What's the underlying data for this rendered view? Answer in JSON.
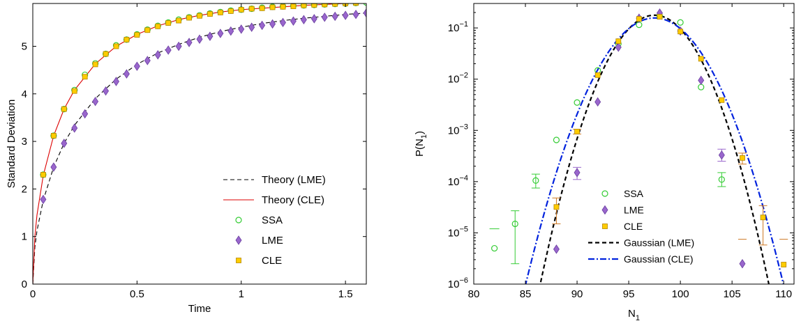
{
  "chart_data": [
    {
      "type": "line",
      "title": "",
      "xlabel": "Time",
      "ylabel": "Standard Deviation",
      "xlim": [
        0,
        1.6
      ],
      "ylim": [
        0,
        5.9
      ],
      "x_ticks": [
        0,
        0.5,
        1,
        1.5
      ],
      "x_tick_labels": [
        "0",
        "0.5",
        "1",
        "1.5"
      ],
      "y_ticks": [
        0,
        1,
        2,
        3,
        4,
        5
      ],
      "y_tick_labels": [
        "0",
        "1",
        "2",
        "3",
        "4",
        "5"
      ],
      "legend_position": "bottom-right",
      "grid": false,
      "series": [
        {
          "name": "Theory (LME)",
          "kind": "line",
          "style": "dashed",
          "color": "#000000",
          "x": [
            0,
            0.01,
            0.02,
            0.05,
            0.1,
            0.15,
            0.2,
            0.3,
            0.4,
            0.5,
            0.6,
            0.7,
            0.8,
            0.9,
            1.0,
            1.1,
            1.2,
            1.3,
            1.4,
            1.5,
            1.6
          ],
          "y": [
            0,
            0.78,
            1.12,
            1.76,
            2.46,
            2.96,
            3.34,
            3.9,
            4.31,
            4.62,
            4.86,
            5.04,
            5.19,
            5.31,
            5.4,
            5.48,
            5.54,
            5.59,
            5.63,
            5.67,
            5.7
          ]
        },
        {
          "name": "Theory (CLE)",
          "kind": "line",
          "style": "solid",
          "color": "#dd0000",
          "x": [
            0,
            0.01,
            0.02,
            0.05,
            0.1,
            0.15,
            0.2,
            0.3,
            0.4,
            0.5,
            0.6,
            0.7,
            0.8,
            0.9,
            1.0,
            1.1,
            1.2,
            1.3,
            1.4,
            1.5,
            1.6
          ],
          "y": [
            0,
            1.0,
            1.45,
            2.28,
            3.12,
            3.68,
            4.08,
            4.63,
            5.0,
            5.25,
            5.43,
            5.56,
            5.65,
            5.72,
            5.77,
            5.8,
            5.83,
            5.86,
            5.88,
            5.9,
            5.92
          ]
        },
        {
          "name": "SSA",
          "kind": "marker",
          "marker": "circle",
          "color": "#33cc33",
          "x": [
            0.05,
            0.1,
            0.15,
            0.2,
            0.25,
            0.3,
            0.35,
            0.4,
            0.45,
            0.5,
            0.55,
            0.6,
            0.65,
            0.7,
            0.75,
            0.8,
            0.85,
            0.9,
            0.95,
            1.0,
            1.05,
            1.1,
            1.15,
            1.2,
            1.25,
            1.3,
            1.35,
            1.4,
            1.45,
            1.5,
            1.55,
            1.6
          ],
          "y": [
            2.3,
            3.12,
            3.68,
            4.08,
            4.4,
            4.64,
            4.84,
            5.02,
            5.14,
            5.25,
            5.35,
            5.43,
            5.5,
            5.56,
            5.61,
            5.65,
            5.69,
            5.72,
            5.75,
            5.77,
            5.79,
            5.81,
            5.83,
            5.84,
            5.85,
            5.86,
            5.87,
            5.88,
            5.89,
            5.9,
            5.91,
            5.92
          ]
        },
        {
          "name": "LME",
          "kind": "marker",
          "marker": "diamond",
          "color": "#9966cc",
          "x": [
            0.05,
            0.1,
            0.15,
            0.2,
            0.25,
            0.3,
            0.35,
            0.4,
            0.45,
            0.5,
            0.55,
            0.6,
            0.65,
            0.7,
            0.75,
            0.8,
            0.85,
            0.9,
            0.95,
            1.0,
            1.05,
            1.1,
            1.15,
            1.2,
            1.25,
            1.3,
            1.35,
            1.4,
            1.45,
            1.5,
            1.55,
            1.6
          ],
          "y": [
            1.78,
            2.46,
            2.96,
            3.28,
            3.58,
            3.84,
            4.06,
            4.26,
            4.42,
            4.58,
            4.7,
            4.82,
            4.92,
            5.0,
            5.08,
            5.15,
            5.21,
            5.27,
            5.32,
            5.36,
            5.4,
            5.44,
            5.47,
            5.5,
            5.53,
            5.56,
            5.58,
            5.61,
            5.63,
            5.65,
            5.67,
            5.7
          ]
        },
        {
          "name": "CLE",
          "kind": "marker",
          "marker": "square",
          "color": "#ffcc00",
          "x": [
            0.05,
            0.1,
            0.15,
            0.2,
            0.25,
            0.3,
            0.35,
            0.4,
            0.45,
            0.5,
            0.55,
            0.6,
            0.65,
            0.7,
            0.75,
            0.8,
            0.85,
            0.9,
            0.95,
            1.0,
            1.05,
            1.1,
            1.15,
            1.2,
            1.25,
            1.3,
            1.35,
            1.4,
            1.45,
            1.5,
            1.55
          ],
          "y": [
            2.3,
            3.12,
            3.68,
            4.06,
            4.36,
            4.62,
            4.84,
            5.0,
            5.14,
            5.24,
            5.34,
            5.42,
            5.49,
            5.54,
            5.6,
            5.64,
            5.68,
            5.71,
            5.74,
            5.77,
            5.79,
            5.8,
            5.82,
            5.83,
            5.84,
            5.86,
            5.87,
            5.88,
            5.89,
            5.9,
            5.91
          ]
        }
      ]
    },
    {
      "type": "scatter",
      "title": "",
      "xlabel": "N",
      "xlabel_sub": "1",
      "ylabel": "P(N",
      "ylabel_sub": "1",
      "ylabel_close": ")",
      "y_scale": "log",
      "xlim": [
        80,
        111
      ],
      "ylim": [
        1e-06,
        0.3
      ],
      "x_ticks": [
        80,
        85,
        90,
        95,
        100,
        105,
        110
      ],
      "x_tick_labels": [
        "80",
        "85",
        "90",
        "95",
        "100",
        "105",
        "110"
      ],
      "y_ticks": [
        1e-06,
        1e-05,
        0.0001,
        0.001,
        0.01,
        0.1
      ],
      "y_tick_labels": [
        {
          "base": "10",
          "exp": "−6"
        },
        {
          "base": "10",
          "exp": "−5"
        },
        {
          "base": "10",
          "exp": "−4"
        },
        {
          "base": "10",
          "exp": "−3"
        },
        {
          "base": "10",
          "exp": "−2"
        },
        {
          "base": "10",
          "exp": "−1"
        }
      ],
      "legend_position": "bottom-center",
      "grid": false,
      "series": [
        {
          "name": "SSA",
          "kind": "marker",
          "marker": "circle",
          "color": "#33cc33",
          "x": [
            82,
            84,
            86,
            88,
            90,
            92,
            94,
            96,
            98,
            100,
            102,
            104
          ],
          "y": [
            5e-06,
            1.5e-05,
            0.000105,
            0.00065,
            0.0035,
            0.0148,
            0.049,
            0.115,
            0.17,
            0.128,
            0.007,
            0.00011
          ],
          "err_lo": [
            null,
            2.5e-06,
            7.5e-05,
            null,
            null,
            null,
            null,
            null,
            null,
            null,
            null,
            8e-05
          ],
          "err_hi": [
            1.2e-05,
            2.7e-05,
            0.00014,
            null,
            null,
            null,
            null,
            null,
            null,
            null,
            null,
            0.00015
          ]
        },
        {
          "name": "LME",
          "kind": "marker",
          "marker": "diamond",
          "color": "#9966cc",
          "x": [
            88,
            90,
            92,
            94,
            96,
            98,
            100,
            102,
            104,
            106
          ],
          "y": [
            4.8e-06,
            0.00015,
            0.0036,
            0.042,
            0.155,
            0.195,
            0.087,
            0.0095,
            0.00033,
            2.5e-06
          ],
          "err_lo": [
            null,
            0.00011,
            null,
            null,
            null,
            null,
            null,
            null,
            0.00025,
            null
          ],
          "err_hi": [
            null,
            0.00019,
            null,
            null,
            null,
            null,
            null,
            null,
            0.00043,
            null
          ]
        },
        {
          "name": "CLE",
          "kind": "marker",
          "marker": "square",
          "color": "#ffcc00",
          "x": [
            88,
            90,
            92,
            94,
            96,
            98,
            100,
            102,
            104,
            106,
            108,
            110
          ],
          "y": [
            3.2e-05,
            0.00095,
            0.012,
            0.055,
            0.15,
            0.165,
            0.085,
            0.025,
            0.0039,
            0.00029,
            2e-05,
            2.4e-06
          ],
          "err_lo": [
            1.5e-05,
            0.00085,
            null,
            null,
            null,
            null,
            null,
            null,
            null,
            0.00022,
            5.8e-06,
            null
          ],
          "err_hi": [
            4.8e-05,
            0.00105,
            null,
            null,
            null,
            null,
            null,
            null,
            null,
            0.00036,
            3.4e-05,
            null
          ],
          "err_color": "#cc7722",
          "dash_marks": [
            {
              "x": 106,
              "y": 7.5e-06
            },
            {
              "x": 110,
              "y": 7.5e-06
            }
          ]
        },
        {
          "name": "Gaussian (LME)",
          "kind": "line",
          "style": "dashed",
          "color": "#000000",
          "gaussian": {
            "mean": 97.5,
            "sd": 2.25
          }
        },
        {
          "name": "Gaussian (CLE)",
          "kind": "line",
          "style": "dashdot",
          "color": "#0022dd",
          "gaussian": {
            "mean": 97.5,
            "sd": 2.55
          }
        }
      ]
    }
  ]
}
